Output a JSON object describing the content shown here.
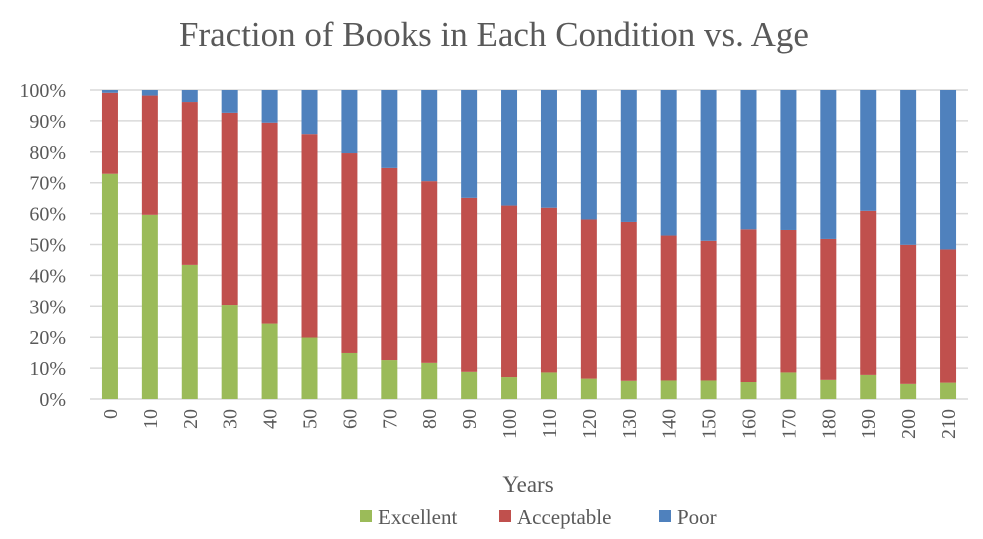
{
  "chart_data": {
    "type": "bar",
    "stacked": "percent",
    "title": "Fraction of Books in Each Condition vs. Age",
    "xlabel": "Years",
    "ylabel": "",
    "ylim": [
      0,
      100
    ],
    "yticks": [
      "0%",
      "10%",
      "20%",
      "30%",
      "40%",
      "50%",
      "60%",
      "70%",
      "80%",
      "90%",
      "100%"
    ],
    "grid": true,
    "legend": "bottom",
    "categories": [
      "0",
      "10",
      "20",
      "30",
      "40",
      "50",
      "60",
      "70",
      "80",
      "90",
      "100",
      "110",
      "120",
      "130",
      "140",
      "150",
      "160",
      "170",
      "180",
      "190",
      "200",
      "210"
    ],
    "series": [
      {
        "name": "Excellent",
        "color": "#9BBB59",
        "values": [
          72.9,
          59.6,
          43.4,
          30.4,
          24.4,
          19.9,
          14.9,
          12.6,
          11.7,
          8.8,
          7.1,
          8.6,
          6.6,
          5.9,
          6.0,
          6.0,
          5.5,
          8.6,
          6.2,
          7.8,
          4.9,
          5.3
        ]
      },
      {
        "name": "Acceptable",
        "color": "#C0504D",
        "values": [
          26.2,
          38.6,
          52.7,
          62.2,
          65.0,
          65.8,
          64.7,
          62.2,
          58.8,
          56.3,
          55.5,
          53.3,
          51.5,
          51.4,
          46.9,
          45.2,
          49.4,
          46.1,
          45.6,
          53.1,
          45.0,
          43.1
        ]
      },
      {
        "name": "Poor",
        "color": "#4F81BD",
        "values": [
          0.9,
          1.8,
          3.9,
          7.4,
          10.6,
          14.3,
          20.4,
          25.2,
          29.5,
          34.9,
          37.4,
          38.1,
          41.9,
          42.7,
          47.1,
          48.8,
          45.1,
          45.3,
          48.2,
          39.1,
          50.1,
          51.6
        ]
      }
    ]
  }
}
